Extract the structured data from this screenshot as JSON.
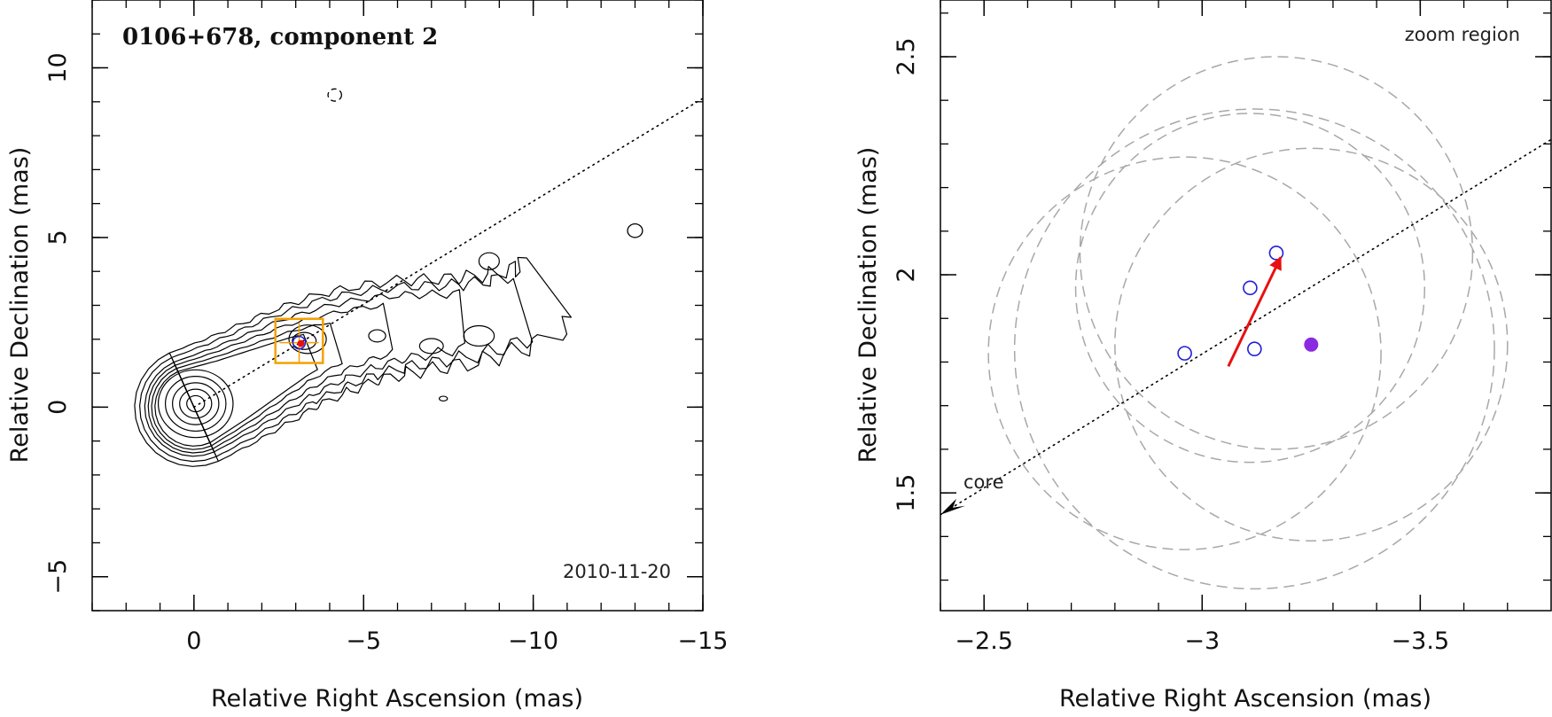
{
  "chart_data": [
    {
      "type": "scatter",
      "title": "0106+678, component 2",
      "annotation": "2010-11-20",
      "xlabel": "Relative Right Ascension (mas)",
      "ylabel": "Relative Declination (mas)",
      "xlim": [
        3,
        -15
      ],
      "ylim": [
        -6,
        12
      ],
      "x_ticks": [
        0,
        -5,
        -10,
        -15
      ],
      "x_tick_labels": [
        "0",
        "−5",
        "−10",
        "−15"
      ],
      "y_ticks": [
        -5,
        0,
        5,
        10
      ],
      "y_tick_labels": [
        "−5",
        "0",
        "5",
        "10"
      ],
      "grid": false,
      "jet_axis_line": {
        "style": "dotted",
        "x": [
          0,
          -15
        ],
        "y": [
          0,
          9.1
        ]
      },
      "component_position": {
        "x": -3.1,
        "y": 1.9
      },
      "zoom_box": {
        "x": [
          -2.4,
          -3.8
        ],
        "y": [
          1.3,
          2.6
        ]
      },
      "contours": "contour map of jet extending from core at (0,0) to about (-10.5, 3.5), isolated islands near (-4.2, 9.2) and (-13, 5.2)"
    },
    {
      "type": "scatter",
      "title": "",
      "annotation": "zoom region",
      "xlabel": "Relative Right Ascension (mas)",
      "ylabel": "Relative Declination (mas)",
      "xlim": [
        -2.4,
        -3.8
      ],
      "ylim": [
        1.23,
        2.63
      ],
      "x_ticks": [
        -2.5,
        -3,
        -3.5
      ],
      "x_tick_labels": [
        "−2.5",
        "−3",
        "−3.5"
      ],
      "y_ticks": [
        1.5,
        2,
        2.5
      ],
      "y_tick_labels": [
        "1.5",
        "2",
        "2.5"
      ],
      "grid": false,
      "core_label": "core",
      "epochs_open": [
        {
          "x": -2.96,
          "y": 1.82
        },
        {
          "x": -3.12,
          "y": 1.83
        },
        {
          "x": -3.11,
          "y": 1.97
        },
        {
          "x": -3.17,
          "y": 2.05
        }
      ],
      "epoch_filled": {
        "x": -3.25,
        "y": 1.84
      },
      "velocity_arrow": {
        "from": [
          -3.06,
          1.79
        ],
        "to": [
          -3.18,
          2.04
        ]
      },
      "uncertainty_circles": [
        {
          "x": -3.17,
          "y": 2.05,
          "r": 0.45
        },
        {
          "x": -3.25,
          "y": 1.84,
          "r": 0.45
        },
        {
          "x": -3.11,
          "y": 1.97,
          "r": 0.4
        },
        {
          "x": -3.12,
          "y": 1.83,
          "r": 0.55
        },
        {
          "x": -2.96,
          "y": 1.82,
          "r": 0.45
        }
      ],
      "jet_axis_line": {
        "style": "dotted",
        "x": [
          -2.4,
          -3.8
        ],
        "y": [
          1.45,
          2.31
        ]
      },
      "colors": {
        "epochs": "#1f1fd6",
        "filled": "#8a2be2",
        "arrow": "#e81010",
        "circles": "#a8a8a8"
      }
    }
  ]
}
